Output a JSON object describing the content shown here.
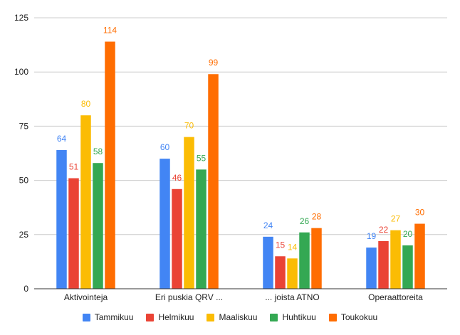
{
  "chart_data": {
    "type": "bar",
    "categories": [
      "Aktivointeja",
      "Eri puskia QRV ...",
      "... joista ATNO",
      "Operaattoreita"
    ],
    "series": [
      {
        "name": "Tammikuu",
        "color": "#4285f4",
        "values": [
          64,
          60,
          24,
          19
        ]
      },
      {
        "name": "Helmikuu",
        "color": "#ea4335",
        "values": [
          51,
          46,
          15,
          22
        ]
      },
      {
        "name": "Maaliskuu",
        "color": "#fbbc04",
        "values": [
          80,
          70,
          14,
          27
        ]
      },
      {
        "name": "Huhtikuu",
        "color": "#34a853",
        "values": [
          58,
          55,
          26,
          20
        ]
      },
      {
        "name": "Toukokuu",
        "color": "#ff6d01",
        "values": [
          114,
          99,
          28,
          30
        ]
      }
    ],
    "ylim": [
      0,
      125
    ],
    "yticks": [
      "0",
      "25",
      "50",
      "75",
      "100",
      "125"
    ],
    "grid": true,
    "legend_position": "bottom",
    "data_labels": true
  }
}
